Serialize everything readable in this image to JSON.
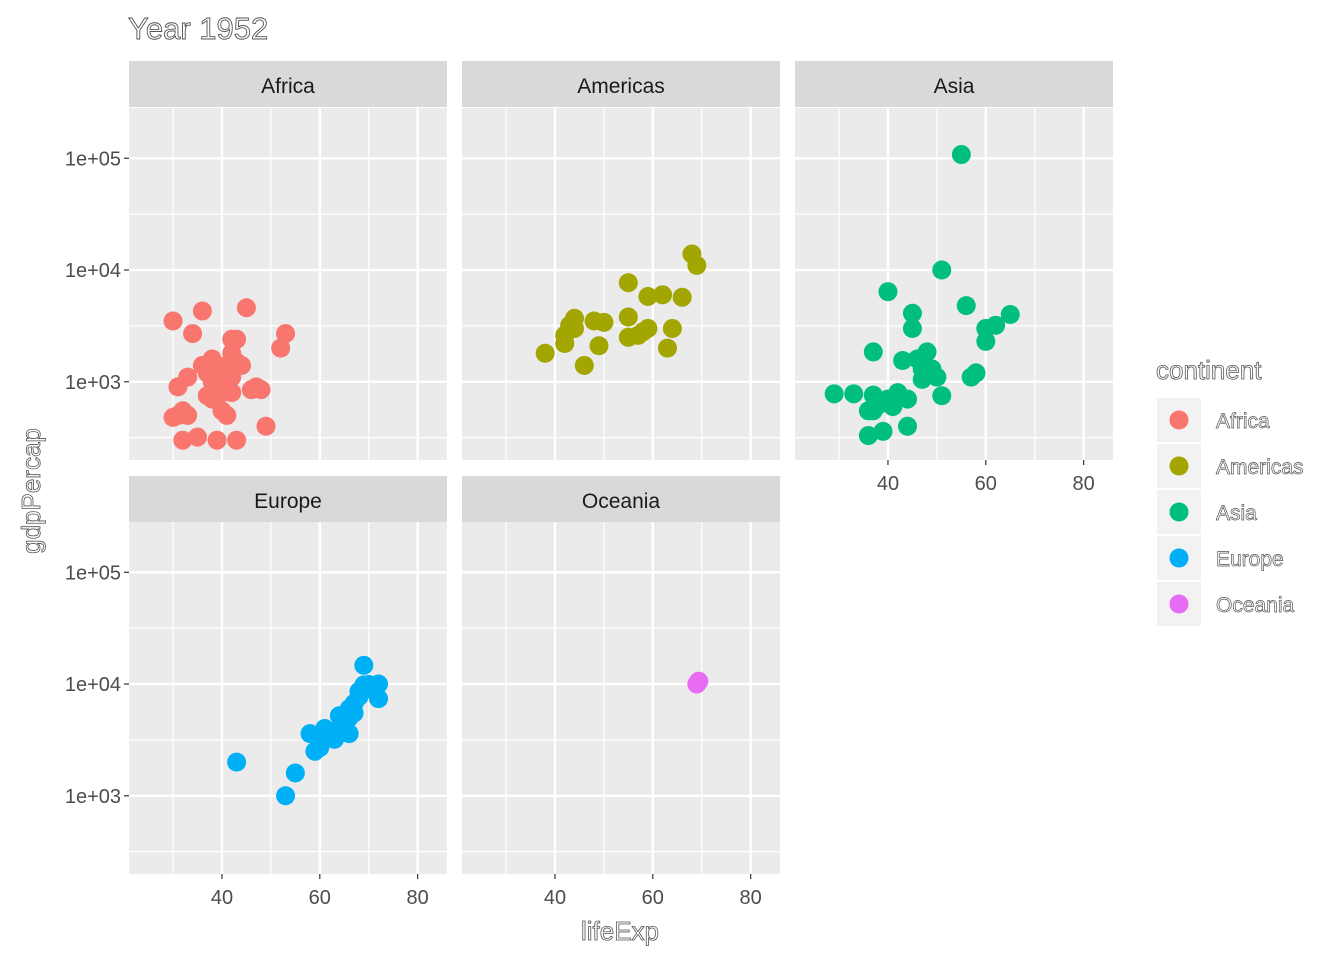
{
  "chart_data": {
    "type": "scatter",
    "title": "Year 1952",
    "xlabel": "lifeExp",
    "ylabel": "gdpPercap",
    "xlim": [
      21,
      86
    ],
    "ylim_log10": [
      2.3,
      5.45
    ],
    "y_scale": "log10",
    "x_ticks": [
      40,
      60,
      80
    ],
    "x_tick_labels": [
      "40",
      "60",
      "80"
    ],
    "y_ticks": [
      1000,
      10000,
      100000
    ],
    "y_tick_labels": [
      "1e+03",
      "1e+04",
      "1e+05"
    ],
    "grid": true,
    "legend_title": "continent",
    "legend_position": "right",
    "facets": [
      {
        "name": "Africa",
        "color": "#F8766D",
        "points": [
          [
            30,
            3500
          ],
          [
            31,
            900
          ],
          [
            30,
            480
          ],
          [
            31,
            500
          ],
          [
            32,
            550
          ],
          [
            32,
            300
          ],
          [
            33,
            500
          ],
          [
            34,
            2700
          ],
          [
            35,
            320
          ],
          [
            33,
            1100
          ],
          [
            36,
            4300
          ],
          [
            36,
            1400
          ],
          [
            37,
            1200
          ],
          [
            37,
            750
          ],
          [
            38,
            1000
          ],
          [
            38,
            700
          ],
          [
            38,
            1600
          ],
          [
            39,
            300
          ],
          [
            39,
            850
          ],
          [
            39,
            1300
          ],
          [
            39,
            1100
          ],
          [
            40,
            800
          ],
          [
            40,
            1200
          ],
          [
            40,
            1000
          ],
          [
            40,
            550
          ],
          [
            41,
            900
          ],
          [
            41,
            500
          ],
          [
            41,
            1400
          ],
          [
            41,
            1000
          ],
          [
            42,
            2400
          ],
          [
            42,
            800
          ],
          [
            42,
            1800
          ],
          [
            42,
            1100
          ],
          [
            43,
            300
          ],
          [
            43,
            2400
          ],
          [
            43,
            1500
          ],
          [
            44,
            1400
          ],
          [
            45,
            4600
          ],
          [
            46,
            850
          ],
          [
            47,
            900
          ],
          [
            48,
            850
          ],
          [
            49,
            400
          ],
          [
            52,
            2000
          ],
          [
            53,
            2700
          ]
        ]
      },
      {
        "name": "Americas",
        "color": "#A3A500",
        "points": [
          [
            38,
            1800
          ],
          [
            42,
            2600
          ],
          [
            42,
            2200
          ],
          [
            43,
            3200
          ],
          [
            44,
            3700
          ],
          [
            44,
            3000
          ],
          [
            46,
            1400
          ],
          [
            48,
            3500
          ],
          [
            49,
            2100
          ],
          [
            50,
            3400
          ],
          [
            55,
            3800
          ],
          [
            55,
            2500
          ],
          [
            55,
            7700
          ],
          [
            57,
            2600
          ],
          [
            58,
            2800
          ],
          [
            59,
            5800
          ],
          [
            59,
            3000
          ],
          [
            62,
            6000
          ],
          [
            63,
            2000
          ],
          [
            64,
            3000
          ],
          [
            66,
            5700
          ],
          [
            68,
            13900
          ],
          [
            69,
            11000
          ]
        ]
      },
      {
        "name": "Asia",
        "color": "#00BF7D",
        "points": [
          [
            29,
            780
          ],
          [
            33,
            780
          ],
          [
            36,
            330
          ],
          [
            36,
            550
          ],
          [
            37,
            760
          ],
          [
            37,
            550
          ],
          [
            37,
            1850
          ],
          [
            38,
            620
          ],
          [
            39,
            360
          ],
          [
            40,
            6400
          ],
          [
            40,
            700
          ],
          [
            41,
            600
          ],
          [
            42,
            800
          ],
          [
            43,
            1550
          ],
          [
            44,
            400
          ],
          [
            44,
            700
          ],
          [
            45,
            3000
          ],
          [
            45,
            4100
          ],
          [
            46,
            1600
          ],
          [
            47,
            1050
          ],
          [
            47,
            1300
          ],
          [
            48,
            1850
          ],
          [
            49,
            1300
          ],
          [
            50,
            1100
          ],
          [
            51,
            750
          ],
          [
            51,
            10000
          ],
          [
            55,
            108000
          ],
          [
            56,
            4800
          ],
          [
            57,
            1100
          ],
          [
            58,
            1200
          ],
          [
            60,
            2300
          ],
          [
            60,
            3000
          ],
          [
            62,
            3200
          ],
          [
            65,
            4000
          ]
        ]
      },
      {
        "name": "Europe",
        "color": "#00B0F6",
        "points": [
          [
            43,
            2000
          ],
          [
            53,
            1000
          ],
          [
            55,
            1600
          ],
          [
            58,
            3600
          ],
          [
            59,
            2500
          ],
          [
            60,
            2700
          ],
          [
            61,
            3500
          ],
          [
            61,
            4000
          ],
          [
            62,
            3300
          ],
          [
            63,
            3200
          ],
          [
            64,
            5200
          ],
          [
            64,
            4000
          ],
          [
            65,
            4500
          ],
          [
            65,
            3700
          ],
          [
            66,
            3600
          ],
          [
            66,
            6000
          ],
          [
            66,
            5000
          ],
          [
            67,
            6700
          ],
          [
            67,
            5500
          ],
          [
            68,
            7700
          ],
          [
            68,
            8600
          ],
          [
            69,
            9800
          ],
          [
            69,
            14700
          ],
          [
            70,
            9900
          ],
          [
            71,
            8800
          ],
          [
            72,
            10000
          ],
          [
            72,
            7400
          ]
        ]
      },
      {
        "name": "Oceania",
        "color": "#E76BF3",
        "points": [
          [
            69,
            10000
          ],
          [
            69.4,
            10600
          ]
        ]
      }
    ]
  }
}
